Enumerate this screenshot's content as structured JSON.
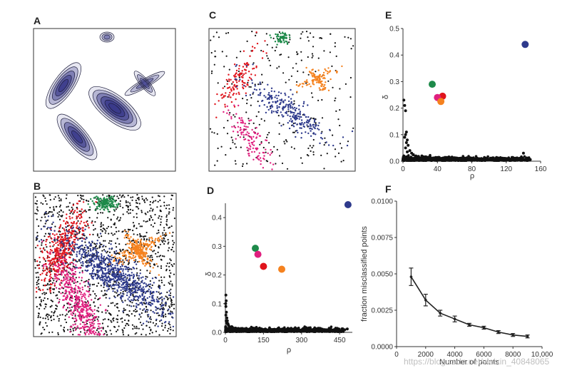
{
  "panels": {
    "A": {
      "letter": "A"
    },
    "B": {
      "letter": "B"
    },
    "C": {
      "letter": "C"
    },
    "D": {
      "letter": "D"
    },
    "E": {
      "letter": "E"
    },
    "F": {
      "letter": "F"
    }
  },
  "colors": {
    "blue": "#2e3a8c",
    "red": "#e0141c",
    "green": "#1e8a4a",
    "orange": "#f5821f",
    "magenta": "#e0207f",
    "black": "#111111",
    "contour_fill": "#3a3a8a"
  },
  "watermark": "https://blog.csdn.net/weixin_40848065",
  "chart_data": [
    {
      "panel": "D",
      "type": "scatter",
      "title": "",
      "xlabel": "ρ",
      "ylabel": "δ",
      "xlim": [
        0,
        500
      ],
      "ylim": [
        0,
        0.45
      ],
      "xticks": [
        "0",
        "150",
        "300",
        "450"
      ],
      "xtick_values": [
        0,
        150,
        300,
        450
      ],
      "yticks": [
        "0.0",
        "0.1",
        "0.2",
        "0.3",
        "0.4"
      ],
      "ytick_values": [
        0,
        0.1,
        0.2,
        0.3,
        0.4
      ],
      "highlighted": [
        {
          "color": "blue",
          "x": 483,
          "y": 0.445
        },
        {
          "color": "green",
          "x": 118,
          "y": 0.293
        },
        {
          "color": "magenta",
          "x": 128,
          "y": 0.272
        },
        {
          "color": "red",
          "x": 150,
          "y": 0.23
        },
        {
          "color": "orange",
          "x": 222,
          "y": 0.22
        }
      ],
      "background_points": [
        {
          "x": 2,
          "y": 0.13
        },
        {
          "x": 3,
          "y": 0.11
        },
        {
          "x": 1,
          "y": 0.1
        },
        {
          "x": 2,
          "y": 0.09
        },
        {
          "x": 4,
          "y": 0.07
        },
        {
          "x": 2,
          "y": 0.06
        },
        {
          "x": 6,
          "y": 0.05
        },
        {
          "x": 3,
          "y": 0.04
        },
        {
          "x": 8,
          "y": 0.04
        },
        {
          "x": 5,
          "y": 0.035
        },
        {
          "x": 10,
          "y": 0.03
        },
        {
          "x": 12,
          "y": 0.025
        },
        {
          "x": 7,
          "y": 0.03
        },
        {
          "x": 15,
          "y": 0.02
        },
        {
          "x": 20,
          "y": 0.018
        },
        {
          "x": 25,
          "y": 0.02
        },
        {
          "x": 30,
          "y": 0.015
        },
        {
          "x": 40,
          "y": 0.015
        },
        {
          "x": 50,
          "y": 0.012
        },
        {
          "x": 60,
          "y": 0.01
        },
        {
          "x": 75,
          "y": 0.012
        },
        {
          "x": 90,
          "y": 0.01
        },
        {
          "x": 105,
          "y": 0.008
        },
        {
          "x": 125,
          "y": 0.01
        },
        {
          "x": 140,
          "y": 0.012
        },
        {
          "x": 160,
          "y": 0.01
        },
        {
          "x": 180,
          "y": 0.008
        },
        {
          "x": 200,
          "y": 0.01
        },
        {
          "x": 230,
          "y": 0.008
        },
        {
          "x": 260,
          "y": 0.009
        },
        {
          "x": 290,
          "y": 0.007
        },
        {
          "x": 320,
          "y": 0.008
        },
        {
          "x": 350,
          "y": 0.007
        },
        {
          "x": 380,
          "y": 0.008
        },
        {
          "x": 410,
          "y": 0.007
        },
        {
          "x": 440,
          "y": 0.008
        },
        {
          "x": 470,
          "y": 0.009
        },
        {
          "x": 480,
          "y": 0.012
        },
        {
          "x": 1,
          "y": 0.02
        },
        {
          "x": 4,
          "y": 0.015
        },
        {
          "x": 9,
          "y": 0.012
        },
        {
          "x": 13,
          "y": 0.01
        },
        {
          "x": 18,
          "y": 0.01
        },
        {
          "x": 35,
          "y": 0.009
        },
        {
          "x": 55,
          "y": 0.008
        },
        {
          "x": 85,
          "y": 0.007
        },
        {
          "x": 115,
          "y": 0.007
        },
        {
          "x": 170,
          "y": 0.007
        },
        {
          "x": 220,
          "y": 0.006
        },
        {
          "x": 275,
          "y": 0.006
        },
        {
          "x": 335,
          "y": 0.006
        },
        {
          "x": 395,
          "y": 0.006
        },
        {
          "x": 455,
          "y": 0.006
        }
      ]
    },
    {
      "panel": "E",
      "type": "scatter",
      "title": "",
      "xlabel": "ρ",
      "ylabel": "δ",
      "xlim": [
        0,
        160
      ],
      "ylim": [
        0,
        0.5
      ],
      "xticks": [
        "0",
        "40",
        "80",
        "120",
        "160"
      ],
      "xtick_values": [
        0,
        40,
        80,
        120,
        160
      ],
      "yticks": [
        "0.0",
        "0.1",
        "0.2",
        "0.3",
        "0.4",
        "0.5"
      ],
      "ytick_values": [
        0,
        0.1,
        0.2,
        0.3,
        0.4,
        0.5
      ],
      "highlighted": [
        {
          "color": "blue",
          "x": 142,
          "y": 0.44
        },
        {
          "color": "green",
          "x": 34,
          "y": 0.29
        },
        {
          "color": "red",
          "x": 46,
          "y": 0.245
        },
        {
          "color": "magenta",
          "x": 40,
          "y": 0.24
        },
        {
          "color": "orange",
          "x": 44,
          "y": 0.225
        }
      ],
      "background_points": [
        {
          "x": 1,
          "y": 0.23
        },
        {
          "x": 2,
          "y": 0.21
        },
        {
          "x": 3,
          "y": 0.19
        },
        {
          "x": 4,
          "y": 0.11
        },
        {
          "x": 3,
          "y": 0.1
        },
        {
          "x": 2,
          "y": 0.09
        },
        {
          "x": 5,
          "y": 0.08
        },
        {
          "x": 4,
          "y": 0.07
        },
        {
          "x": 6,
          "y": 0.06
        },
        {
          "x": 3,
          "y": 0.05
        },
        {
          "x": 8,
          "y": 0.04
        },
        {
          "x": 5,
          "y": 0.035
        },
        {
          "x": 10,
          "y": 0.03
        },
        {
          "x": 12,
          "y": 0.025
        },
        {
          "x": 15,
          "y": 0.02
        },
        {
          "x": 18,
          "y": 0.018
        },
        {
          "x": 22,
          "y": 0.02
        },
        {
          "x": 26,
          "y": 0.015
        },
        {
          "x": 30,
          "y": 0.015
        },
        {
          "x": 35,
          "y": 0.012
        },
        {
          "x": 40,
          "y": 0.012
        },
        {
          "x": 48,
          "y": 0.01
        },
        {
          "x": 55,
          "y": 0.01
        },
        {
          "x": 62,
          "y": 0.012
        },
        {
          "x": 70,
          "y": 0.01
        },
        {
          "x": 78,
          "y": 0.009
        },
        {
          "x": 86,
          "y": 0.01
        },
        {
          "x": 94,
          "y": 0.008
        },
        {
          "x": 102,
          "y": 0.009
        },
        {
          "x": 110,
          "y": 0.008
        },
        {
          "x": 118,
          "y": 0.008
        },
        {
          "x": 126,
          "y": 0.007
        },
        {
          "x": 134,
          "y": 0.008
        },
        {
          "x": 140,
          "y": 0.03
        },
        {
          "x": 143,
          "y": 0.008
        },
        {
          "x": 1,
          "y": 0.02
        },
        {
          "x": 2,
          "y": 0.015
        },
        {
          "x": 6,
          "y": 0.012
        },
        {
          "x": 9,
          "y": 0.01
        },
        {
          "x": 14,
          "y": 0.009
        },
        {
          "x": 20,
          "y": 0.008
        },
        {
          "x": 28,
          "y": 0.007
        },
        {
          "x": 38,
          "y": 0.007
        },
        {
          "x": 52,
          "y": 0.006
        },
        {
          "x": 66,
          "y": 0.006
        },
        {
          "x": 82,
          "y": 0.006
        },
        {
          "x": 98,
          "y": 0.006
        },
        {
          "x": 114,
          "y": 0.006
        },
        {
          "x": 130,
          "y": 0.006
        }
      ]
    },
    {
      "panel": "F",
      "type": "line",
      "title": "",
      "xlabel": "Number of points",
      "ylabel": "fraction misclassified points",
      "xlim": [
        0,
        10000
      ],
      "ylim": [
        0,
        0.01
      ],
      "xticks": [
        "0",
        "2000",
        "4000",
        "6000",
        "8000",
        "10,000"
      ],
      "xtick_values": [
        0,
        2000,
        4000,
        6000,
        8000,
        10000
      ],
      "yticks": [
        "0.0000",
        "0.0025",
        "0.0050",
        "0.0075",
        "0.0100"
      ],
      "ytick_values": [
        0,
        0.0025,
        0.005,
        0.0075,
        0.01
      ],
      "x": [
        1000,
        2000,
        3000,
        4000,
        5000,
        6000,
        7000,
        8000,
        9000
      ],
      "values": [
        0.0048,
        0.0032,
        0.0023,
        0.0019,
        0.0015,
        0.0013,
        0.001,
        0.0008,
        0.0007
      ],
      "errors": [
        0.0006,
        0.0004,
        0.0002,
        0.0002,
        0.0001,
        0.0001,
        0.0001,
        0.0001,
        0.0001
      ]
    }
  ]
}
